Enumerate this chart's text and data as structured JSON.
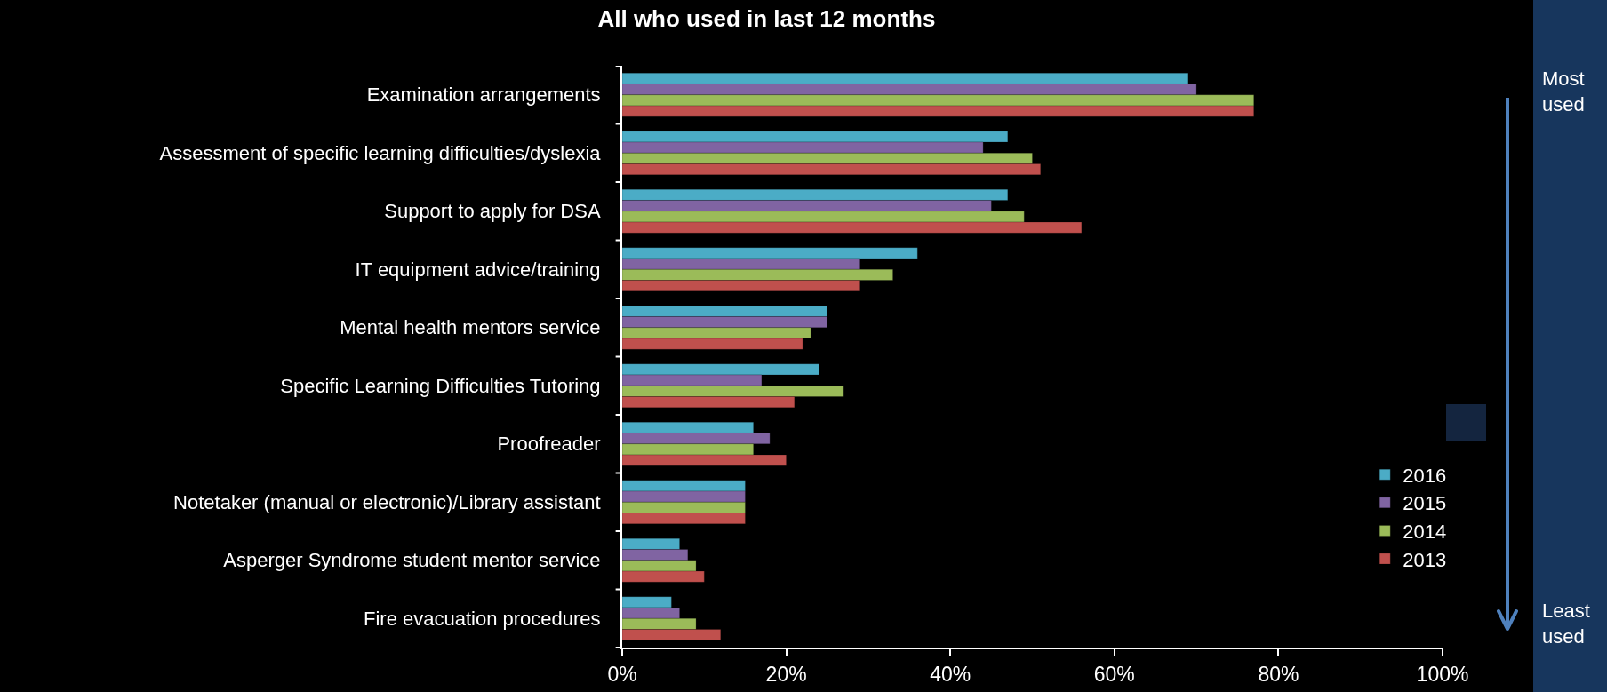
{
  "chart_data": {
    "type": "bar",
    "orientation": "horizontal",
    "title": "All who used in last 12 months",
    "categories": [
      "Examination arrangements",
      "Assessment of specific learning difficulties/dyslexia",
      "Support to apply for DSA",
      "IT equipment advice/training",
      "Mental health mentors service",
      "Specific Learning Difficulties Tutoring",
      "Proofreader",
      "Notetaker (manual or electronic)/Library assistant",
      "Asperger Syndrome student mentor service",
      "Fire evacuation procedures"
    ],
    "series": [
      {
        "name": "2016",
        "color": "#4bacc6",
        "values": [
          69,
          47,
          47,
          36,
          25,
          24,
          16,
          15,
          7,
          6
        ]
      },
      {
        "name": "2015",
        "color": "#8064a2",
        "values": [
          70,
          44,
          45,
          29,
          25,
          17,
          18,
          15,
          8,
          7
        ]
      },
      {
        "name": "2014",
        "color": "#9bbb59",
        "values": [
          77,
          50,
          49,
          33,
          23,
          27,
          16,
          15,
          9,
          9
        ]
      },
      {
        "name": "2013",
        "color": "#c0504d",
        "values": [
          77,
          51,
          56,
          29,
          22,
          21,
          20,
          15,
          10,
          12
        ]
      }
    ],
    "xlim": [
      0,
      100
    ],
    "xticks": [
      {
        "value": 0,
        "label": "0%"
      },
      {
        "value": 20,
        "label": "20%"
      },
      {
        "value": 40,
        "label": "40%"
      },
      {
        "value": 60,
        "label": "60%"
      },
      {
        "value": 80,
        "label": "80%"
      },
      {
        "value": 100,
        "label": "100%"
      }
    ],
    "grid": false,
    "legend": "right",
    "annotations": [
      "Most used",
      "Least used"
    ]
  }
}
